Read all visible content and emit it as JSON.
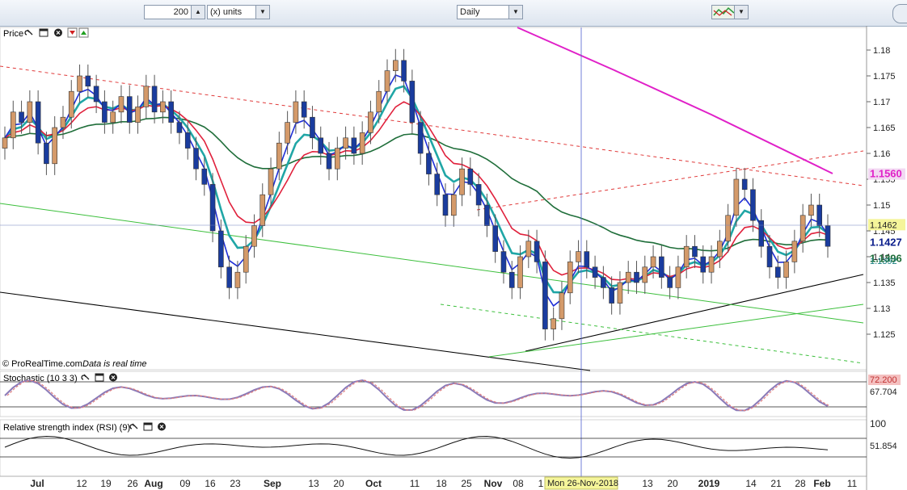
{
  "toolbar": {
    "quantity_value": "200",
    "units_label": "(x) units",
    "timeframe_label": "Daily"
  },
  "price_panel": {
    "title": "Price",
    "watermark": "© ProRealTime.com",
    "realtime_note": "Data is real time"
  },
  "stochastic_panel": {
    "title": "Stochastic (10 3 3)",
    "value_a": "72.200",
    "value_b": "67.704"
  },
  "rsi_panel": {
    "title": "Relative strength index (RSI) (9)",
    "value": "51.854",
    "scale_top": "100"
  },
  "cursor_label": "Mon 26-Nov-2018",
  "colors": {
    "up": "#d49a6a",
    "down": "#1a3c9e",
    "ema_fast": "#1f2fd6",
    "ema_red": "#e0213c",
    "ema_teal": "#20a6a6",
    "ema_green": "#1f6e3a",
    "ma_magenta": "#e020c8",
    "value_box": "#f5f59a",
    "current_box": "#0b1e8c"
  },
  "chart_data": {
    "type": "candlestick",
    "y_range": [
      1.116,
      1.186
    ],
    "y_ticks": [
      "1.18",
      "1.175",
      "1.17",
      "1.165",
      "1.16",
      "1.155",
      "1.15",
      "1.145",
      "1.14",
      "1.135",
      "1.13",
      "1.125"
    ],
    "x_ticks": [
      "Jul",
      "12",
      "19",
      "26",
      "Aug",
      "09",
      "16",
      "23",
      "Sep",
      "13",
      "20",
      "Oct",
      "11",
      "18",
      "25",
      "Nov",
      "08",
      "1",
      "13",
      "20",
      "2019",
      "14",
      "21",
      "28",
      "Feb",
      "11"
    ],
    "price_labels": [
      {
        "text": "1.1560",
        "value": 1.156,
        "style": "magenta"
      },
      {
        "text": "1.1462",
        "value": 1.1462,
        "style": "box"
      },
      {
        "text": "1.1427",
        "value": 1.1427,
        "style": "current"
      },
      {
        "text": "1.1396",
        "value": 1.1396,
        "style": "green"
      },
      {
        "text": "1.1392",
        "value": 1.1392,
        "style": "teal"
      }
    ],
    "closes": [
      1.163,
      1.168,
      1.166,
      1.17,
      1.162,
      1.158,
      1.165,
      1.167,
      1.172,
      1.175,
      1.173,
      1.17,
      1.166,
      1.168,
      1.171,
      1.166,
      1.169,
      1.173,
      1.168,
      1.17,
      1.166,
      1.164,
      1.161,
      1.157,
      1.154,
      1.145,
      1.138,
      1.134,
      1.137,
      1.142,
      1.146,
      1.152,
      1.157,
      1.162,
      1.166,
      1.17,
      1.167,
      1.163,
      1.16,
      1.157,
      1.161,
      1.163,
      1.16,
      1.164,
      1.168,
      1.172,
      1.176,
      1.178,
      1.174,
      1.166,
      1.16,
      1.156,
      1.152,
      1.148,
      1.152,
      1.157,
      1.154,
      1.15,
      1.146,
      1.141,
      1.137,
      1.134,
      1.14,
      1.143,
      1.139,
      1.126,
      1.128,
      1.133,
      1.139,
      1.141,
      1.138,
      1.136,
      1.134,
      1.131,
      1.135,
      1.137,
      1.135,
      1.138,
      1.14,
      1.136,
      1.134,
      1.138,
      1.142,
      1.14,
      1.137,
      1.14,
      1.143,
      1.148,
      1.155,
      1.153,
      1.147,
      1.142,
      1.138,
      1.136,
      1.139,
      1.143,
      1.148,
      1.15,
      1.146,
      1.142
    ]
  }
}
